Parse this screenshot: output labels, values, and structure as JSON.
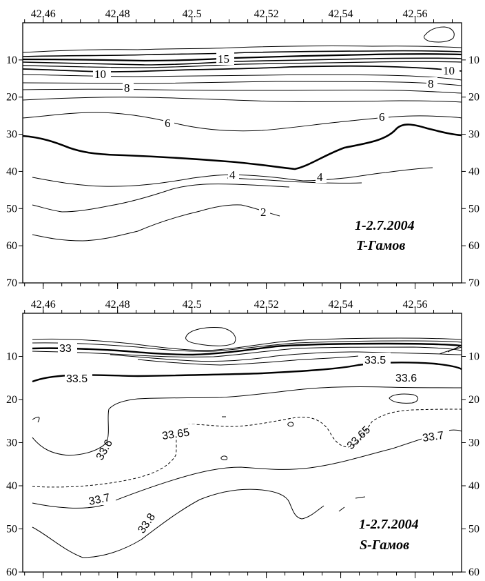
{
  "chart_data": [
    {
      "type": "contour",
      "title_line1": "1-2.7.2004",
      "title_line2": "T-Гамов",
      "x_ticks": [
        "42.46",
        "42.48",
        "42.5",
        "42.52",
        "42.54",
        "42.56"
      ],
      "y_ticks": [
        "10",
        "20",
        "30",
        "40",
        "50",
        "60",
        "70"
      ],
      "xlim": [
        42.4545,
        42.5725
      ],
      "ylim": [
        70,
        0
      ],
      "contour_labels": [
        "15",
        "10",
        "10",
        "8",
        "8",
        "6",
        "6",
        "4",
        "4",
        "2"
      ]
    },
    {
      "type": "contour",
      "title_line1": "1-2.7.2004",
      "title_line2": "S-Гамов",
      "x_ticks": [
        "42.46",
        "42.48",
        "42.5",
        "42.52",
        "42.54",
        "42.56"
      ],
      "y_ticks": [
        "10",
        "20",
        "30",
        "40",
        "50",
        "60"
      ],
      "xlim": [
        42.4545,
        42.5725
      ],
      "ylim": [
        60,
        0
      ],
      "contour_labels": [
        "33",
        "33.5",
        "33.5",
        "33.6",
        "33.6",
        "33.65",
        "33.65",
        "33.7",
        "33.7",
        "33.8"
      ]
    }
  ]
}
